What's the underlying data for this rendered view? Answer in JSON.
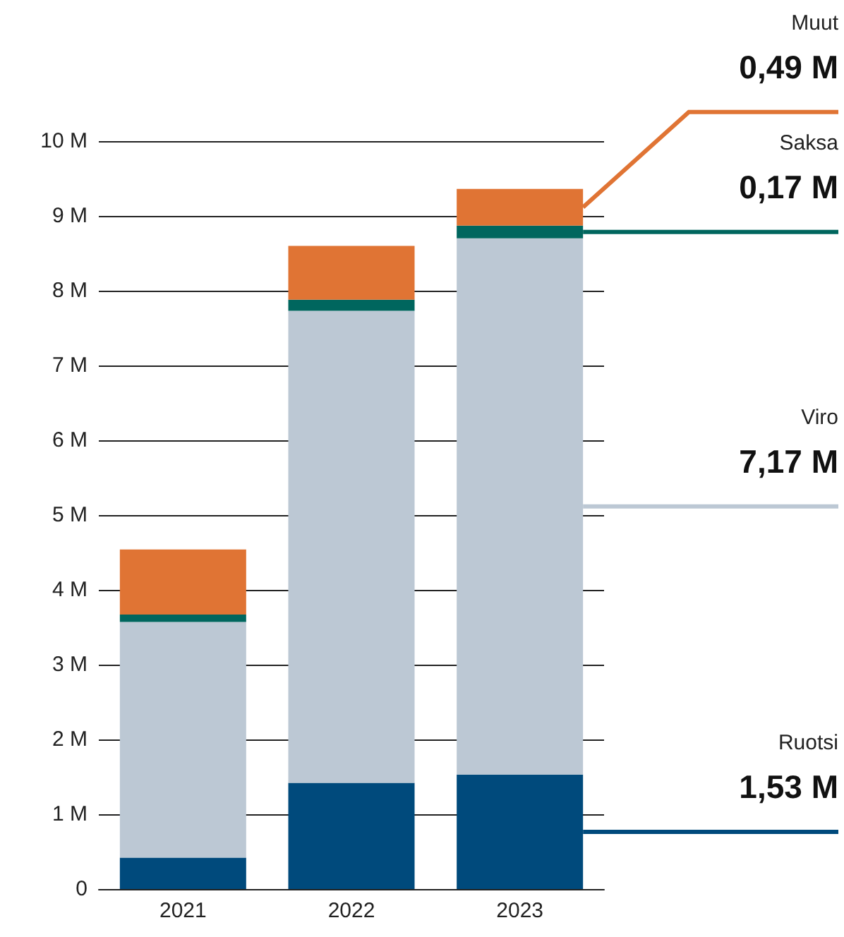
{
  "chart_data": {
    "type": "bar",
    "stacked": true,
    "categories": [
      "2021",
      "2022",
      "2023"
    ],
    "series": [
      {
        "name": "Ruotsi",
        "color": "#004a7c",
        "values": [
          0.42,
          1.42,
          1.53
        ],
        "value_labels": [
          null,
          null,
          "1,53 M"
        ]
      },
      {
        "name": "Viro",
        "color": "#bcc8d4",
        "values": [
          3.15,
          6.31,
          7.17
        ],
        "value_labels": [
          null,
          null,
          "7,17 M"
        ]
      },
      {
        "name": "Saksa",
        "color": "#00665e",
        "values": [
          0.1,
          0.15,
          0.17
        ],
        "value_labels": [
          null,
          null,
          "0,17 M"
        ]
      },
      {
        "name": "Muut",
        "color": "#e07434",
        "values": [
          0.87,
          0.72,
          0.49
        ],
        "value_labels": [
          null,
          null,
          "0,49 M"
        ]
      }
    ],
    "ylim": [
      0,
      10
    ],
    "yticks": [
      {
        "value": 0,
        "label": "0"
      },
      {
        "value": 1,
        "label": "1 M"
      },
      {
        "value": 2,
        "label": "2 M"
      },
      {
        "value": 3,
        "label": "3 M"
      },
      {
        "value": 4,
        "label": "4 M"
      },
      {
        "value": 5,
        "label": "5 M"
      },
      {
        "value": 6,
        "label": "6 M"
      },
      {
        "value": 7,
        "label": "7 M"
      },
      {
        "value": 8,
        "label": "8 M"
      },
      {
        "value": 9,
        "label": "9 M"
      },
      {
        "value": 10,
        "label": "10 M"
      }
    ],
    "grid": "y",
    "legend": false
  }
}
